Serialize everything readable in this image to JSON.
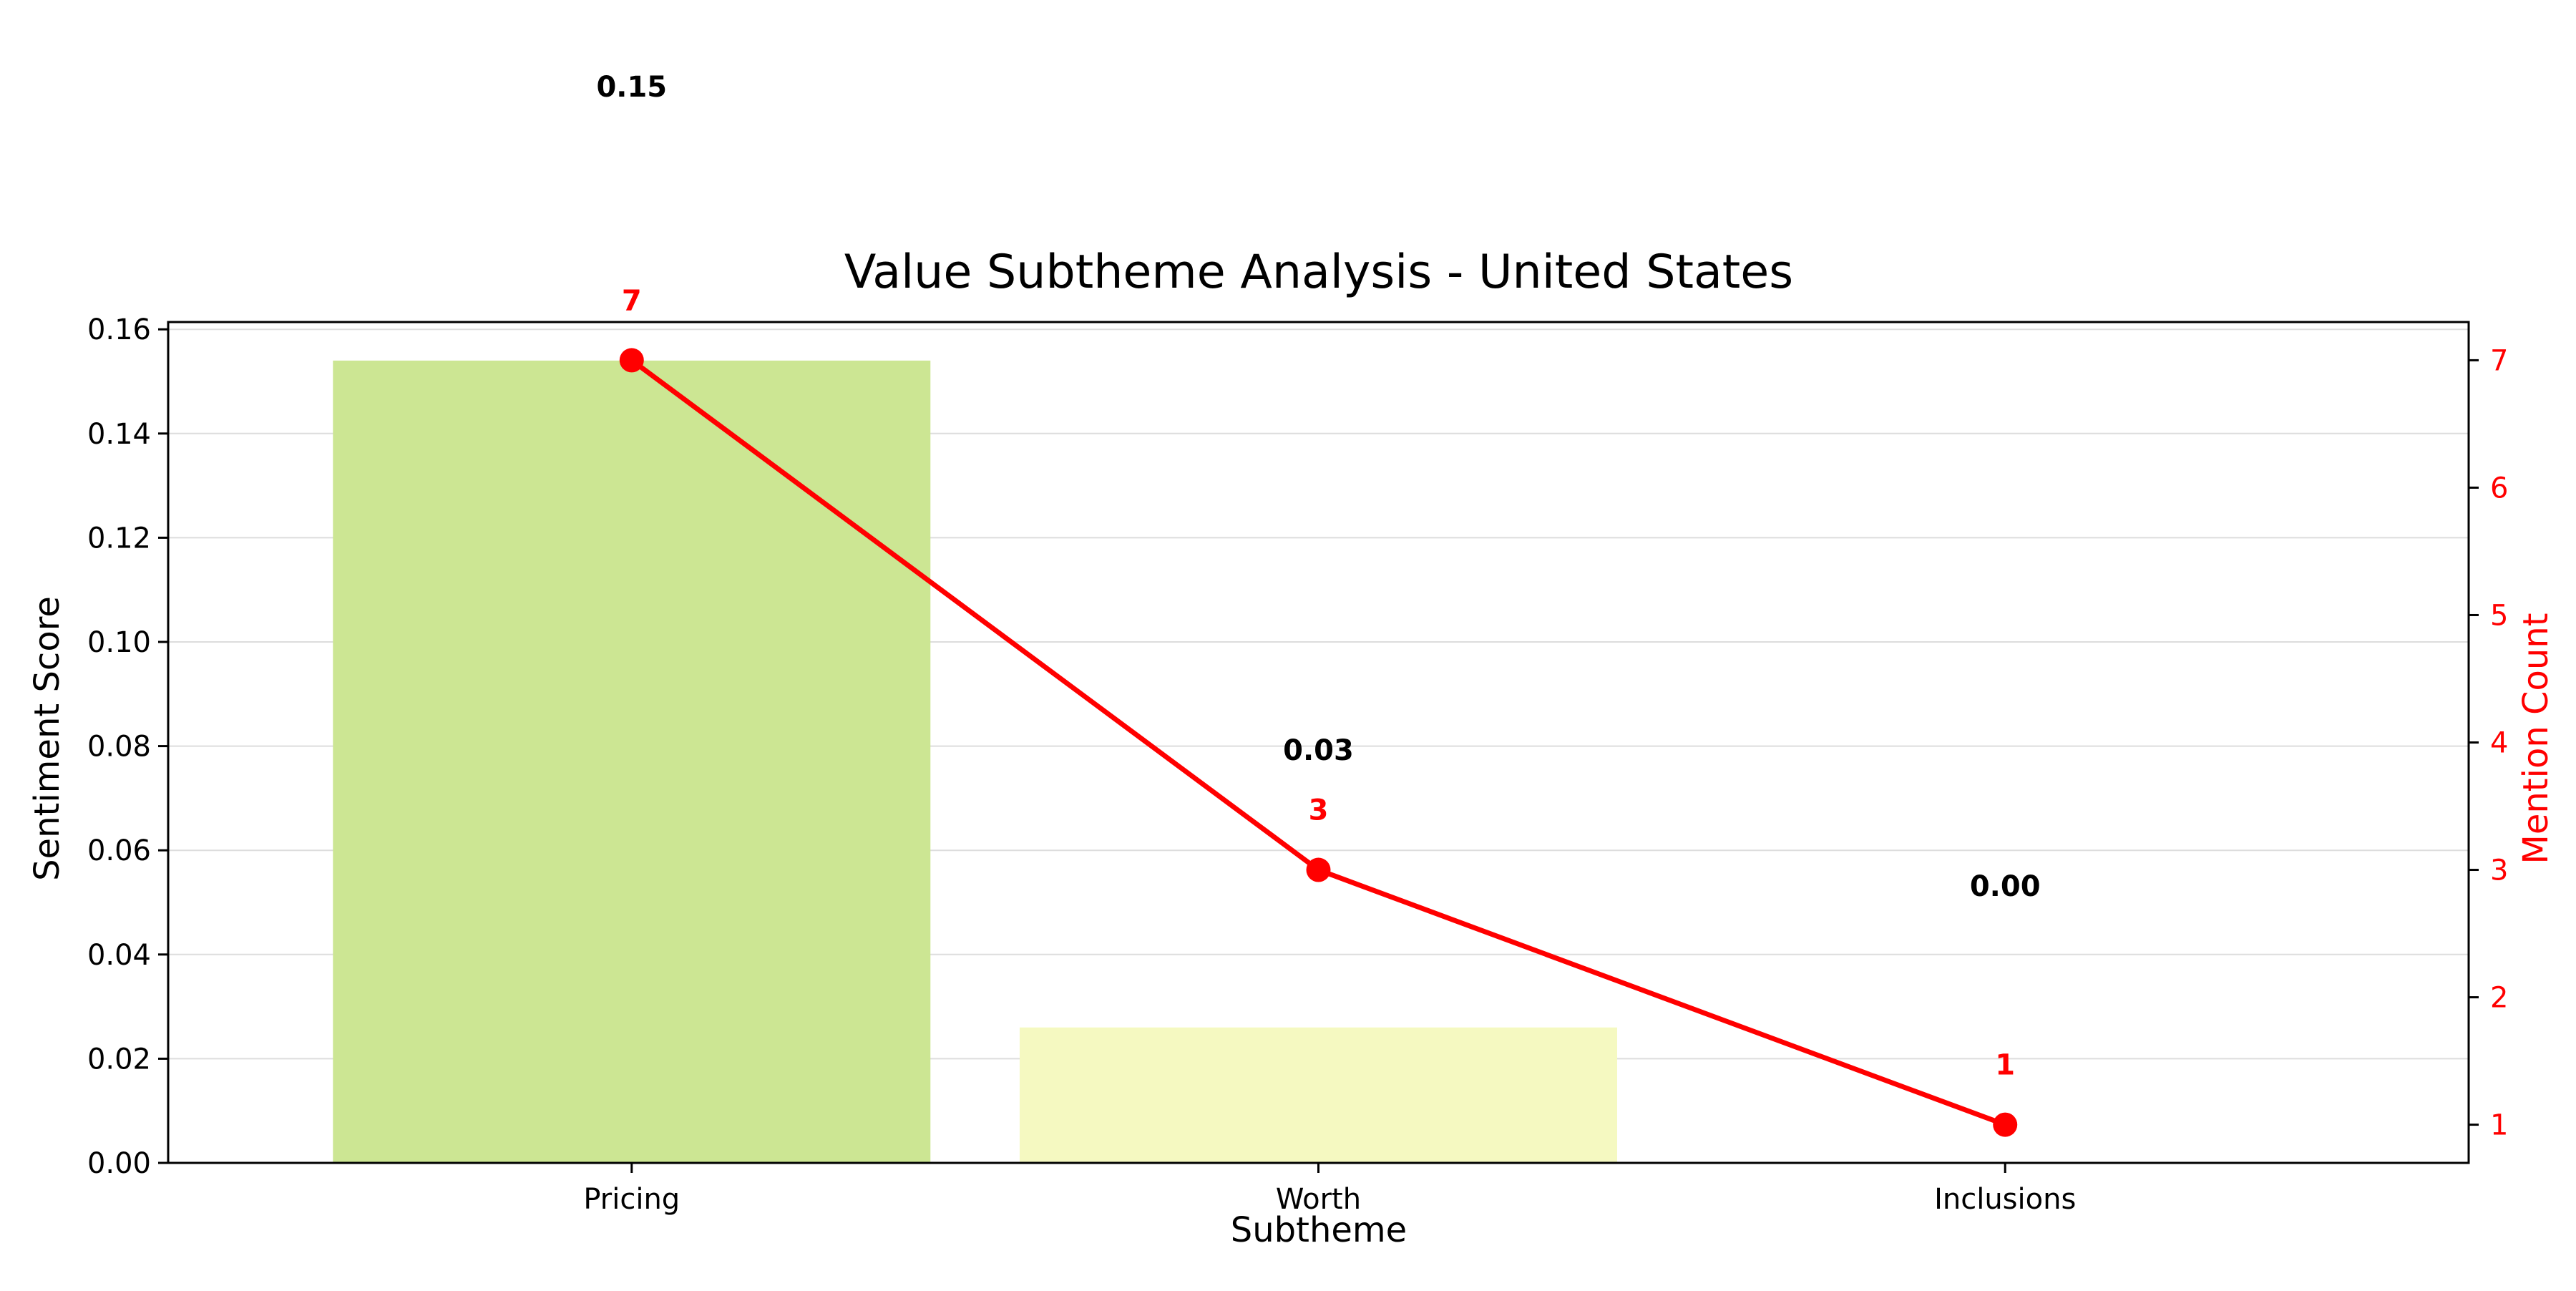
{
  "chart_data": {
    "type": "bar",
    "title": "Value Subtheme Analysis - United States",
    "xlabel": "Subtheme",
    "ylabel": "Sentiment Score",
    "y2label": "Mention Count",
    "categories": [
      "Pricing",
      "Worth",
      "Inclusions"
    ],
    "series": [
      {
        "type": "bar",
        "axis": "left",
        "values": [
          0.154,
          0.026,
          0.0
        ],
        "value_labels": [
          "0.15",
          "0.03",
          "0.00"
        ],
        "colors": [
          "#cce693",
          "#f5f9c1",
          "#ffffff"
        ]
      },
      {
        "type": "line",
        "axis": "right",
        "values": [
          7,
          3,
          1
        ],
        "value_labels": [
          "7",
          "3",
          "1"
        ],
        "color": "#ff0000"
      }
    ],
    "ylim": [
      0,
      0.1614
    ],
    "y2lim": [
      0.7,
      7.3
    ],
    "yticks": [
      "0.00",
      "0.02",
      "0.04",
      "0.06",
      "0.08",
      "0.10",
      "0.12",
      "0.14",
      "0.16"
    ],
    "ytick_values": [
      0,
      0.02,
      0.04,
      0.06,
      0.08,
      0.1,
      0.12,
      0.14,
      0.16
    ],
    "y2ticks": [
      "1",
      "2",
      "3",
      "4",
      "5",
      "6",
      "7"
    ],
    "y2tick_values": [
      1,
      2,
      3,
      4,
      5,
      6,
      7
    ],
    "grid": "horizontal",
    "colors": {
      "line": "#ff0000",
      "axis": "#000000",
      "grid": "#dddddd"
    }
  }
}
